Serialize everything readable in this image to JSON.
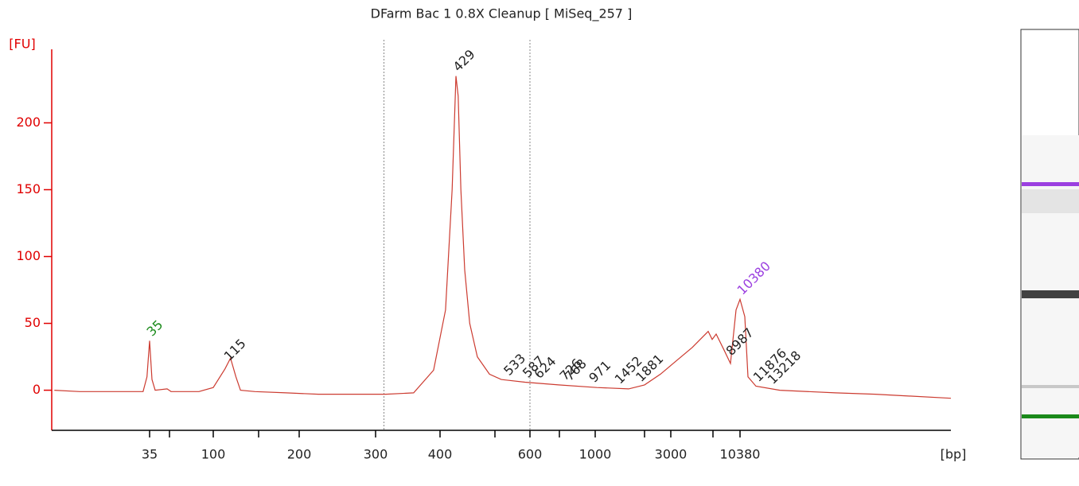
{
  "chart_data": {
    "type": "line",
    "title": "DFarm Bac 1 0.8X Cleanup  [ MiSeq_257 ]",
    "ylabel": "[FU]",
    "xlabel": "[bp]",
    "xlim": [
      20,
      30000
    ],
    "ylim": [
      -30,
      255
    ],
    "yticks": [
      0,
      50,
      100,
      150,
      200
    ],
    "xticks": [
      35,
      {
        "value": 50,
        "label": null
      },
      100,
      {
        "value": 150,
        "label": null
      },
      200,
      300,
      400,
      {
        "value": 500,
        "label": null
      },
      600,
      {
        "value": 700,
        "label": null
      },
      1000,
      {
        "value": 2000,
        "label": null
      },
      3000,
      {
        "value": 7000,
        "label": null
      },
      10380
    ],
    "color": "#cc3b30",
    "x": [
      20.4,
      24.3,
      30.4,
      34.0,
      34.6,
      35,
      36.8,
      39.2,
      48.2,
      51.8,
      83.6,
      100,
      113,
      119,
      125,
      130,
      146,
      184,
      225,
      316,
      359,
      390,
      410,
      422,
      429,
      433,
      438,
      445,
      454,
      468,
      490,
      518,
      586,
      697,
      1032,
      1677,
      2000,
      2606,
      3528,
      5038,
      5792,
      6547,
      6925,
      7398,
      8392,
      9187,
      9883,
      10380,
      10824,
      11120,
      11860,
      14080,
      19260,
      22960,
      30000
    ],
    "values": [
      0,
      -1,
      -1,
      -1,
      10,
      37,
      8,
      0,
      1,
      -1,
      -1,
      2,
      16,
      24,
      10,
      0,
      -1,
      -2,
      -3,
      -3,
      -2,
      15,
      60,
      150,
      235,
      220,
      150,
      90,
      50,
      25,
      12,
      8,
      6,
      4,
      2,
      1,
      4,
      12,
      22,
      32,
      38,
      44,
      38,
      42,
      30,
      20,
      60,
      68,
      55,
      10,
      3,
      0,
      -2,
      -3,
      -6
    ],
    "region_bounds": [
      313,
      600
    ],
    "peaks": [
      {
        "bp": 35,
        "color": "#1a8a1a"
      },
      {
        "bp": 115,
        "color": "#222222"
      },
      {
        "bp": 429,
        "color": "#222222"
      },
      {
        "bp": 533,
        "color": "#222222"
      },
      {
        "bp": 587,
        "color": "#222222"
      },
      {
        "bp": 624,
        "color": "#222222"
      },
      {
        "bp": 726,
        "color": "#222222"
      },
      {
        "bp": 768,
        "color": "#222222"
      },
      {
        "bp": 971,
        "color": "#222222"
      },
      {
        "bp": 1452,
        "color": "#222222"
      },
      {
        "bp": 1881,
        "color": "#222222"
      },
      {
        "bp": 8987,
        "color": "#222222"
      },
      {
        "bp": 10380,
        "color": "#9b3fe0"
      },
      {
        "bp": 11876,
        "color": "#222222"
      },
      {
        "bp": 13218,
        "color": "#222222"
      }
    ]
  }
}
